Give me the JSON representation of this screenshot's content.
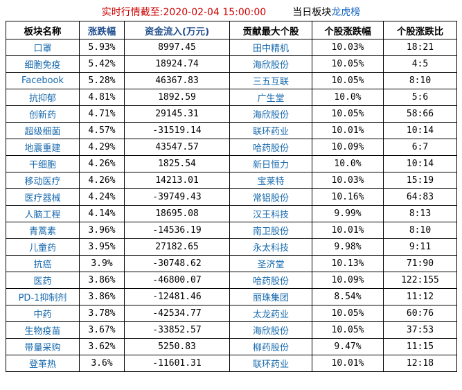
{
  "title": {
    "timestamp": "实时行情截至:2020-02-04 15:00:00",
    "board_label": "当日板块",
    "link_label": "龙虎榜",
    "timestamp_color": "#cc0000",
    "link_color": "#1565c0"
  },
  "chart_data": {
    "type": "table",
    "title": "当日板块龙虎榜",
    "header_blue": "#24508f",
    "name_blue": "#1568ad",
    "columns": [
      {
        "label": "板块名称",
        "color": "#000000"
      },
      {
        "label": "涨跌幅",
        "color": "#24508f"
      },
      {
        "label": "资金流入(万元)",
        "color": "#24508f"
      },
      {
        "label": "贡献最大个股",
        "color": "#000000"
      },
      {
        "label": "个股涨跌幅",
        "color": "#000000"
      },
      {
        "label": "个股涨跌比",
        "color": "#000000"
      }
    ],
    "rows": [
      [
        "口罩",
        "5.93%",
        "8997.45",
        "田中精机",
        "10.03%",
        "18:21"
      ],
      [
        "细胞免疫",
        "5.42%",
        "18924.74",
        "海欣股份",
        "10.05%",
        "4:5"
      ],
      [
        "Facebook",
        "5.28%",
        "46367.83",
        "三五互联",
        "10.05%",
        "8:10"
      ],
      [
        "抗抑郁",
        "4.81%",
        "1892.59",
        "广生堂",
        "10.0%",
        "5:6"
      ],
      [
        "创新药",
        "4.71%",
        "29145.31",
        "海欣股份",
        "10.05%",
        "58:66"
      ],
      [
        "超级细菌",
        "4.57%",
        "-31519.14",
        "联环药业",
        "10.01%",
        "10:14"
      ],
      [
        "地震重建",
        "4.29%",
        "43547.57",
        "哈药股份",
        "10.09%",
        "6:7"
      ],
      [
        "干细胞",
        "4.26%",
        "1825.54",
        "新日恒力",
        "10.0%",
        "10:14"
      ],
      [
        "移动医疗",
        "4.26%",
        "14213.01",
        "宝莱特",
        "10.03%",
        "15:19"
      ],
      [
        "医疗器械",
        "4.24%",
        "-39749.43",
        "常铝股份",
        "10.16%",
        "64:83"
      ],
      [
        "人脑工程",
        "4.14%",
        "18695.08",
        "汉王科技",
        "9.99%",
        "8:13"
      ],
      [
        "青蒿素",
        "3.96%",
        "-14536.19",
        "南卫股份",
        "10.01%",
        "8:10"
      ],
      [
        "儿童药",
        "3.95%",
        "27182.65",
        "永太科技",
        "9.98%",
        "9:11"
      ],
      [
        "抗癌",
        "3.9%",
        "-30748.62",
        "圣济堂",
        "10.13%",
        "71:90"
      ],
      [
        "医药",
        "3.86%",
        "-46800.07",
        "哈药股份",
        "10.09%",
        "122:155"
      ],
      [
        "PD-1抑制剂",
        "3.86%",
        "-12481.46",
        "丽珠集团",
        "8.54%",
        "11:12"
      ],
      [
        "中药",
        "3.78%",
        "-42534.77",
        "太龙药业",
        "10.05%",
        "60:76"
      ],
      [
        "生物疫苗",
        "3.67%",
        "-33852.57",
        "海欣股份",
        "10.05%",
        "37:53"
      ],
      [
        "带量采购",
        "3.62%",
        "5250.83",
        "柳药股份",
        "9.47%",
        "11:15"
      ],
      [
        "登革热",
        "3.6%",
        "-11601.31",
        "联环药业",
        "10.01%",
        "12:18"
      ]
    ]
  }
}
